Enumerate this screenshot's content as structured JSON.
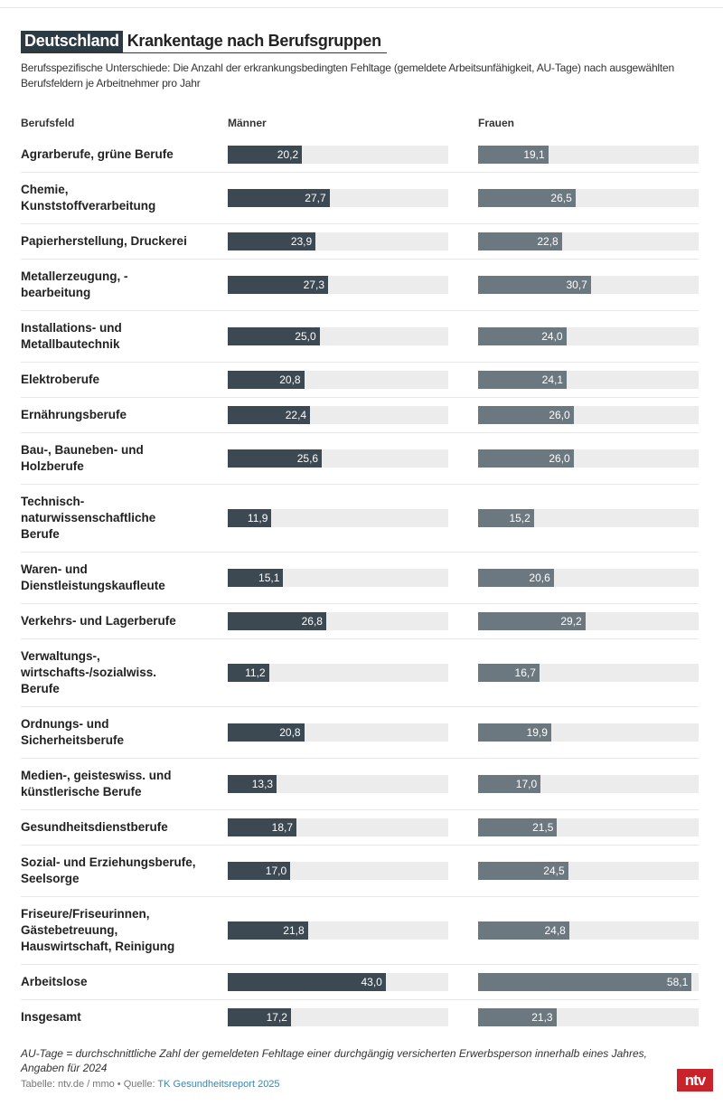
{
  "header": {
    "kicker": "Deutschland",
    "title": "Krankentage nach Berufsgruppen",
    "subtitle": "Berufsspezifische Unterschiede: Die Anzahl der erkrankungsbedingten Fehltage (gemeldete Arbeitsunfähigkeit, AU-Tage) nach ausgewählten Berufsfeldern je Arbeitnehmer pro Jahr"
  },
  "chart_data": {
    "type": "table",
    "xlim": [
      0,
      60
    ],
    "columns": [
      "Berufsfeld",
      "Männer",
      "Frauen"
    ],
    "colors": {
      "Männer": "#3c4953",
      "Frauen": "#6c7880",
      "track": "#ececec"
    },
    "rows": [
      {
        "label": "Agrarberufe, grüne Berufe",
        "m": 20.2,
        "f": 19.1,
        "m_text": "20,2",
        "f_text": "19,1"
      },
      {
        "label": "Chemie,\nKunststoffverarbeitung",
        "m": 27.7,
        "f": 26.5,
        "m_text": "27,7",
        "f_text": "26,5"
      },
      {
        "label": "Papierherstellung, Druckerei",
        "m": 23.9,
        "f": 22.8,
        "m_text": "23,9",
        "f_text": "22,8"
      },
      {
        "label": "Metallerzeugung, -\nbearbeitung",
        "m": 27.3,
        "f": 30.7,
        "m_text": "27,3",
        "f_text": "30,7"
      },
      {
        "label": "Installations- und\nMetallbautechnik",
        "m": 25.0,
        "f": 24.0,
        "m_text": "25,0",
        "f_text": "24,0"
      },
      {
        "label": "Elektroberufe",
        "m": 20.8,
        "f": 24.1,
        "m_text": "20,8",
        "f_text": "24,1"
      },
      {
        "label": "Ernährungsberufe",
        "m": 22.4,
        "f": 26.0,
        "m_text": "22,4",
        "f_text": "26,0"
      },
      {
        "label": "Bau-, Bauneben- und\nHolzberufe",
        "m": 25.6,
        "f": 26.0,
        "m_text": "25,6",
        "f_text": "26,0"
      },
      {
        "label": "Technisch-\nnaturwissenschaftliche\nBerufe",
        "m": 11.9,
        "f": 15.2,
        "m_text": "11,9",
        "f_text": "15,2"
      },
      {
        "label": "Waren- und\nDienstleistungskaufleute",
        "m": 15.1,
        "f": 20.6,
        "m_text": "15,1",
        "f_text": "20,6"
      },
      {
        "label": "Verkehrs- und Lagerberufe",
        "m": 26.8,
        "f": 29.2,
        "m_text": "26,8",
        "f_text": "29,2"
      },
      {
        "label": "Verwaltungs-,\nwirtschafts-/sozialwiss.\nBerufe",
        "m": 11.2,
        "f": 16.7,
        "m_text": "11,2",
        "f_text": "16,7"
      },
      {
        "label": "Ordnungs- und\nSicherheitsberufe",
        "m": 20.8,
        "f": 19.9,
        "m_text": "20,8",
        "f_text": "19,9"
      },
      {
        "label": "Medien-, geisteswiss. und\nkünstlerische Berufe",
        "m": 13.3,
        "f": 17.0,
        "m_text": "13,3",
        "f_text": "17,0"
      },
      {
        "label": "Gesundheitsdienstberufe",
        "m": 18.7,
        "f": 21.5,
        "m_text": "18,7",
        "f_text": "21,5"
      },
      {
        "label": "Sozial- und Erziehungsberufe,\nSeelsorge",
        "m": 17.0,
        "f": 24.5,
        "m_text": "17,0",
        "f_text": "24,5"
      },
      {
        "label": "Friseure/Friseurinnen,\nGästebetreuung,\nHauswirtschaft, Reinigung",
        "m": 21.8,
        "f": 24.8,
        "m_text": "21,8",
        "f_text": "24,8"
      },
      {
        "label": "Arbeitslose",
        "m": 43.0,
        "f": 58.1,
        "m_text": "43,0",
        "f_text": "58,1"
      },
      {
        "label": "Insgesamt",
        "m": 17.2,
        "f": 21.3,
        "m_text": "17,2",
        "f_text": "21,3"
      }
    ]
  },
  "footer": {
    "note": "AU-Tage = durchschnittliche Zahl der gemeldeten Fehltage einer durchgängig versicherten Erwerbsperson innerhalb eines Jahres, Angaben für 2024",
    "credit": "Tabelle: ntv.de / mmo • Quelle: ",
    "source_link": "TK Gesundheitsreport 2025",
    "logo": "ntv"
  }
}
